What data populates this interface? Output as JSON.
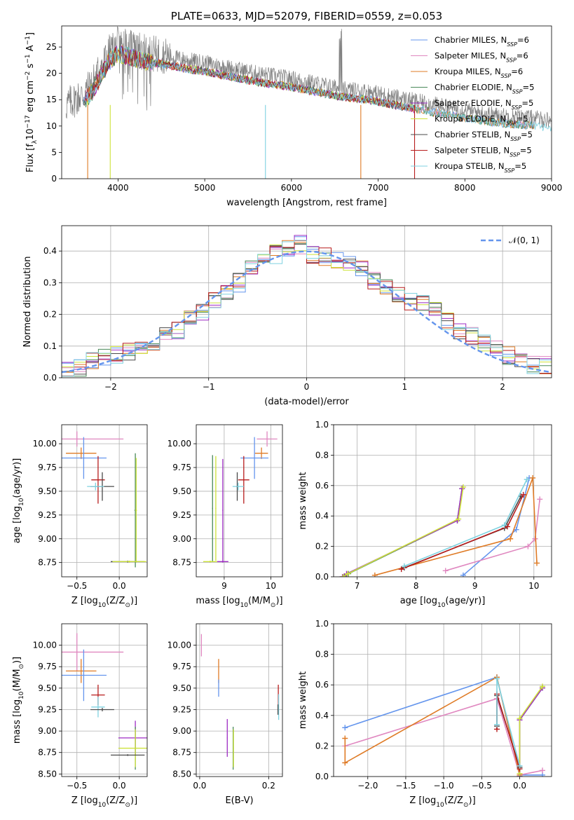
{
  "colors": {
    "chab_miles": "#6495ed",
    "salp_miles": "#e088c0",
    "krou_miles": "#df7b26",
    "chab_elod": "#4a8a5a",
    "salp_elod": "#9e2cc4",
    "krou_elod": "#cde23b",
    "chab_stel": "#4a4a4a",
    "salp_stel": "#b71c1c",
    "krou_stel": "#7fd2e0",
    "normal": "#6495ed"
  },
  "chart_data": [
    {
      "type": "line",
      "title": "PLATE=0633, MJD=52079, FIBERID=0559, z=0.053",
      "xlabel": "wavelength [Angstrom, rest frame]",
      "ylabel_parts": [
        "Flux [f",
        "λ",
        "10",
        "−17",
        " erg cm",
        "−2",
        " s",
        "−1",
        " A",
        "−1",
        "]"
      ],
      "xlim": [
        3350,
        9000
      ],
      "ylim": [
        0,
        29
      ],
      "xticks": [
        "4000",
        "5000",
        "6000",
        "7000",
        "8000",
        "9000"
      ],
      "yticks": [
        "0",
        "5",
        "10",
        "15",
        "20",
        "25"
      ],
      "legend": [
        {
          "key": "chab_miles",
          "label": "Chabrier MILES, N",
          "sub": "SSP",
          "tail": "=6"
        },
        {
          "key": "salp_miles",
          "label": "Salpeter MILES, N",
          "sub": "SSP",
          "tail": "=6"
        },
        {
          "key": "krou_miles",
          "label": "Kroupa MILES, N",
          "sub": "SSP",
          "tail": "=6"
        },
        {
          "key": "chab_elod",
          "label": "Chabrier ELODIE, N",
          "sub": "SSP",
          "tail": "=5"
        },
        {
          "key": "salp_elod",
          "label": "Salpeter ELODIE, N",
          "sub": "SSP",
          "tail": "=5"
        },
        {
          "key": "krou_elod",
          "label": "Kroupa ELODIE, N",
          "sub": "SSP",
          "tail": "=5"
        },
        {
          "key": "chab_stel",
          "label": "Chabrier STELIB, N",
          "sub": "SSP",
          "tail": "=5"
        },
        {
          "key": "salp_stel",
          "label": "Salpeter STELIB, N",
          "sub": "SSP",
          "tail": "=5"
        },
        {
          "key": "krou_stel",
          "label": "Kroupa STELIB, N",
          "sub": "SSP",
          "tail": "=5"
        }
      ],
      "spectrum": {
        "x": [
          3400,
          3600,
          3700,
          3800,
          3900,
          4000,
          4100,
          4300,
          4500,
          4800,
          5000,
          5300,
          5600,
          6000,
          6300,
          6600,
          6900,
          7200,
          7500,
          8000,
          8400,
          8800,
          9000
        ],
        "y": [
          14,
          16,
          18,
          21,
          24,
          25.5,
          25,
          24,
          23.5,
          22.5,
          22,
          21,
          20,
          19,
          18,
          17,
          16.5,
          15.5,
          14.5,
          13,
          12,
          11.5,
          11
        ]
      }
    },
    {
      "type": "histogram",
      "xlabel": "(data-model)/error",
      "ylabel": "Normed distribution",
      "xlim": [
        -2.5,
        2.5
      ],
      "ylim": [
        0,
        0.48
      ],
      "xticks": [
        "−2",
        "−1",
        "0",
        "1",
        "2"
      ],
      "yticks": [
        "0.0",
        "0.1",
        "0.2",
        "0.3",
        "0.4"
      ],
      "legend": "𝒩(0, 1)",
      "bin_edges": [
        -2.5,
        -2.375,
        -2.25,
        -2.125,
        -2.0,
        -1.875,
        -1.75,
        -1.625,
        -1.5,
        -1.375,
        -1.25,
        -1.125,
        -1.0,
        -0.875,
        -0.75,
        -0.625,
        -0.5,
        -0.375,
        -0.25,
        -0.125,
        0.0,
        0.125,
        0.25,
        0.375,
        0.5,
        0.625,
        0.75,
        0.875,
        1.0,
        1.125,
        1.25,
        1.375,
        1.5,
        1.625,
        1.75,
        1.875,
        2.0,
        2.125,
        2.25,
        2.375,
        2.5
      ],
      "hist_base": [
        0.02,
        0.03,
        0.05,
        0.06,
        0.07,
        0.08,
        0.1,
        0.11,
        0.13,
        0.15,
        0.19,
        0.21,
        0.25,
        0.27,
        0.3,
        0.34,
        0.36,
        0.39,
        0.41,
        0.42,
        0.39,
        0.38,
        0.37,
        0.36,
        0.34,
        0.31,
        0.29,
        0.26,
        0.24,
        0.23,
        0.21,
        0.18,
        0.15,
        0.13,
        0.11,
        0.09,
        0.07,
        0.05,
        0.04,
        0.04
      ]
    },
    {
      "type": "scatter",
      "panel": "age-vs-Z",
      "xlabel_parts": [
        "Z [log",
        "10",
        "(Z/Z",
        "⊙",
        ")]"
      ],
      "ylabel_parts": [
        "age  [log",
        "10",
        "(age/yr)]"
      ],
      "xlim": [
        -0.68,
        0.33
      ],
      "ylim": [
        8.6,
        10.2
      ],
      "xticks": [
        "−0.5",
        "0.0"
      ],
      "yticks": [
        "8.75",
        "9.00",
        "9.25",
        "9.50",
        "9.75",
        "10.00"
      ],
      "points": [
        {
          "key": "salp_miles",
          "x": -0.5,
          "y": 10.05,
          "ex": 0.55,
          "ey": 0.08
        },
        {
          "key": "krou_miles",
          "x": -0.45,
          "y": 9.9,
          "ex": 0.18,
          "ey": 0.06
        },
        {
          "key": "chab_miles",
          "x": -0.42,
          "y": 9.85,
          "ex": 0.27,
          "ey": 0.22
        },
        {
          "key": "salp_stel",
          "x": -0.25,
          "y": 9.62,
          "ex": 0.08,
          "ey": 0.25
        },
        {
          "key": "chab_stel",
          "x": -0.2,
          "y": 9.55,
          "ex": 0.14,
          "ey": 0.15
        },
        {
          "key": "krou_stel",
          "x": -0.28,
          "y": 9.55,
          "ex": 0.1,
          "ey": 0.04
        },
        {
          "key": "chab_elod",
          "x": 0.19,
          "y": 9.3,
          "ex": 0.01,
          "ey": 0.6
        },
        {
          "key": "krou_elod",
          "x": 0.2,
          "y": 9.3,
          "ex": 0.01,
          "ey": 0.55
        },
        {
          "key": "chab_stel",
          "x": 0.1,
          "y": 8.76,
          "ex": 0.2,
          "ey": 0.01
        },
        {
          "key": "krou_elod",
          "x": 0.12,
          "y": 8.76,
          "ex": 0.2,
          "ey": 0.01
        }
      ]
    },
    {
      "type": "scatter",
      "panel": "age-vs-mass",
      "xlabel_parts": [
        "mass [log",
        "10",
        "(M/M",
        "⊙",
        ")]"
      ],
      "xlim": [
        8.4,
        10.25
      ],
      "ylim": [
        8.6,
        10.2
      ],
      "xticks": [
        "9",
        "10"
      ],
      "yticks": [
        "8.75",
        "9.00",
        "9.25",
        "9.50",
        "9.75",
        "10.00"
      ],
      "points": [
        {
          "key": "salp_miles",
          "x": 9.92,
          "y": 10.05,
          "ex": 0.22,
          "ey": 0.08
        },
        {
          "key": "krou_miles",
          "x": 9.8,
          "y": 9.9,
          "ex": 0.14,
          "ey": 0.06
        },
        {
          "key": "chab_miles",
          "x": 9.65,
          "y": 9.85,
          "ex": 0.3,
          "ey": 0.22
        },
        {
          "key": "salp_stel",
          "x": 9.42,
          "y": 9.62,
          "ex": 0.12,
          "ey": 0.25
        },
        {
          "key": "chab_stel",
          "x": 9.28,
          "y": 9.55,
          "ex": 0.02,
          "ey": 0.15
        },
        {
          "key": "krou_stel",
          "x": 9.3,
          "y": 9.55,
          "ex": 0.12,
          "ey": 0.04
        },
        {
          "key": "chab_elod",
          "x": 8.75,
          "y": 9.32,
          "ex": 0.01,
          "ey": 0.56
        },
        {
          "key": "krou_elod",
          "x": 8.82,
          "y": 9.32,
          "ex": 0.01,
          "ey": 0.55
        },
        {
          "key": "salp_elod",
          "x": 8.97,
          "y": 9.3,
          "ex": 0.01,
          "ey": 0.54
        },
        {
          "key": "krou_elod",
          "x": 8.7,
          "y": 8.76,
          "ex": 0.15,
          "ey": 0.01
        },
        {
          "key": "salp_elod",
          "x": 8.97,
          "y": 8.76,
          "ex": 0.12,
          "ey": 0.01
        }
      ]
    },
    {
      "type": "line",
      "panel": "weight-vs-age",
      "xlabel_parts": [
        "age  [log",
        "10",
        "(age/yr)]"
      ],
      "ylabel": "mass weight",
      "xlim": [
        6.6,
        10.3
      ],
      "ylim": [
        0,
        1
      ],
      "xticks": [
        "7",
        "8",
        "9",
        "10"
      ],
      "yticks": [
        "0.0",
        "0.2",
        "0.4",
        "0.6",
        "0.8",
        "1.0"
      ],
      "series": [
        {
          "key": "chab_miles",
          "points": [
            [
              8.8,
              0.01
            ],
            [
              9.7,
              0.31
            ],
            [
              9.92,
              0.65
            ]
          ]
        },
        {
          "key": "salp_miles",
          "points": [
            [
              8.5,
              0.04
            ],
            [
              9.9,
              0.2
            ],
            [
              10.02,
              0.25
            ],
            [
              10.1,
              0.51
            ]
          ]
        },
        {
          "key": "krou_miles",
          "points": [
            [
              7.3,
              0.01
            ],
            [
              9.6,
              0.25
            ],
            [
              9.98,
              0.65
            ],
            [
              10.05,
              0.09
            ]
          ]
        },
        {
          "key": "chab_elod",
          "points": [
            [
              6.78,
              0.0
            ],
            [
              6.85,
              0.02
            ],
            [
              8.7,
              0.37
            ],
            [
              8.78,
              0.58
            ]
          ]
        },
        {
          "key": "salp_elod",
          "points": [
            [
              6.75,
              0.0
            ],
            [
              6.82,
              0.02
            ],
            [
              8.7,
              0.37
            ],
            [
              8.78,
              0.58
            ]
          ]
        },
        {
          "key": "krou_elod",
          "points": [
            [
              6.76,
              0.0
            ],
            [
              6.84,
              0.02
            ],
            [
              8.72,
              0.38
            ],
            [
              8.8,
              0.59
            ]
          ]
        },
        {
          "key": "chab_stel",
          "points": [
            [
              7.8,
              0.06
            ],
            [
              9.5,
              0.32
            ],
            [
              9.78,
              0.53
            ]
          ]
        },
        {
          "key": "salp_stel",
          "points": [
            [
              7.75,
              0.05
            ],
            [
              9.55,
              0.33
            ],
            [
              9.82,
              0.54
            ]
          ]
        },
        {
          "key": "krou_stel",
          "points": [
            [
              7.8,
              0.07
            ],
            [
              9.5,
              0.34
            ],
            [
              9.88,
              0.64
            ]
          ]
        }
      ]
    },
    {
      "type": "scatter",
      "panel": "mass-vs-Z",
      "xlabel_parts": [
        "Z [log",
        "10",
        "(Z/Z",
        "⊙",
        ")]"
      ],
      "ylabel_parts": [
        "mass [log",
        "10",
        "(M/M",
        "⊙",
        ")]"
      ],
      "xlim": [
        -0.68,
        0.33
      ],
      "ylim": [
        8.47,
        10.25
      ],
      "xticks": [
        "−0.5",
        "0.0"
      ],
      "yticks": [
        "8.50",
        "8.75",
        "9.00",
        "9.25",
        "9.50",
        "9.75",
        "10.00"
      ],
      "points": [
        {
          "key": "salp_miles",
          "x": -0.5,
          "y": 9.92,
          "ex": 0.55,
          "ey": 0.22
        },
        {
          "key": "krou_miles",
          "x": -0.45,
          "y": 9.7,
          "ex": 0.18,
          "ey": 0.14
        },
        {
          "key": "chab_miles",
          "x": -0.42,
          "y": 9.65,
          "ex": 0.27,
          "ey": 0.3
        },
        {
          "key": "salp_stel",
          "x": -0.25,
          "y": 9.42,
          "ex": 0.08,
          "ey": 0.12
        },
        {
          "key": "krou_stel",
          "x": -0.25,
          "y": 9.28,
          "ex": 0.08,
          "ey": 0.12
        },
        {
          "key": "chab_stel",
          "x": -0.2,
          "y": 9.25,
          "ex": 0.14,
          "ey": 0.02
        },
        {
          "key": "salp_elod",
          "x": 0.19,
          "y": 8.92,
          "ex": 0.2,
          "ey": 0.2
        },
        {
          "key": "chab_elod",
          "x": 0.19,
          "y": 8.8,
          "ex": 0.01,
          "ey": 0.25
        },
        {
          "key": "krou_elod",
          "x": 0.19,
          "y": 8.8,
          "ex": 0.2,
          "ey": 0.22
        },
        {
          "key": "chab_stel",
          "x": 0.1,
          "y": 8.72,
          "ex": 0.2,
          "ey": 0.01
        }
      ]
    },
    {
      "type": "scatter",
      "panel": "mass-vs-ebv",
      "xlabel": "E(B-V)",
      "xlim": [
        -0.01,
        0.24
      ],
      "ylim": [
        8.47,
        10.25
      ],
      "xticks": [
        "0.0",
        "0.2"
      ],
      "yticks": [
        "8.50",
        "8.75",
        "9.00",
        "9.25",
        "9.50",
        "9.75",
        "10.00"
      ],
      "points": [
        {
          "key": "salp_miles",
          "x": 0.005,
          "y": 10.0,
          "ex": 0.001,
          "ey": 0.13
        },
        {
          "key": "krou_miles",
          "x": 0.055,
          "y": 9.7,
          "ex": 0.001,
          "ey": 0.14
        },
        {
          "key": "chab_miles",
          "x": 0.055,
          "y": 9.5,
          "ex": 0.001,
          "ey": 0.1
        },
        {
          "key": "salp_stel",
          "x": 0.228,
          "y": 9.42,
          "ex": 0.001,
          "ey": 0.12
        },
        {
          "key": "krou_stel",
          "x": 0.229,
          "y": 9.28,
          "ex": 0.001,
          "ey": 0.15
        },
        {
          "key": "chab_stel",
          "x": 0.227,
          "y": 9.25,
          "ex": 0.001,
          "ey": 0.06
        },
        {
          "key": "salp_elod",
          "x": 0.08,
          "y": 8.92,
          "ex": 0.001,
          "ey": 0.22
        },
        {
          "key": "chab_elod",
          "x": 0.097,
          "y": 8.8,
          "ex": 0.001,
          "ey": 0.25
        },
        {
          "key": "krou_elod",
          "x": 0.098,
          "y": 8.8,
          "ex": 0.001,
          "ey": 0.22
        }
      ]
    },
    {
      "type": "line",
      "panel": "weight-vs-Z",
      "xlabel_parts": [
        "Z [log",
        "10",
        "(Z/Z",
        "⊙",
        ")]"
      ],
      "ylabel": "mass weight",
      "xlim": [
        -2.45,
        0.42
      ],
      "ylim": [
        0,
        1
      ],
      "xticks": [
        "−2.0",
        "−1.5",
        "−1.0",
        "−0.5",
        "0.0"
      ],
      "yticks": [
        "0.0",
        "0.2",
        "0.4",
        "0.6",
        "0.8",
        "1.0"
      ],
      "series": [
        {
          "key": "chab_miles",
          "points": [
            [
              -2.3,
              0.32
            ],
            [
              -0.3,
              0.65
            ],
            [
              0.0,
              0.01
            ],
            [
              0.3,
              0.01
            ]
          ]
        },
        {
          "key": "salp_miles",
          "points": [
            [
              -2.3,
              0.2
            ],
            [
              -0.3,
              0.51
            ],
            [
              0.0,
              0.01
            ],
            [
              0.3,
              0.04
            ]
          ]
        },
        {
          "key": "krou_miles",
          "points": [
            [
              -2.3,
              0.25
            ],
            [
              -2.3,
              0.09
            ],
            [
              -0.3,
              0.65
            ],
            [
              0.0,
              0.01
            ]
          ]
        },
        {
          "key": "chab_elod",
          "points": [
            [
              0.0,
              0.0
            ],
            [
              0.0,
              0.37
            ],
            [
              0.3,
              0.58
            ]
          ]
        },
        {
          "key": "salp_elod",
          "points": [
            [
              0.0,
              0.0
            ],
            [
              0.0,
              0.37
            ],
            [
              0.3,
              0.58
            ]
          ]
        },
        {
          "key": "krou_elod",
          "points": [
            [
              0.0,
              0.02
            ],
            [
              0.0,
              0.38
            ],
            [
              0.3,
              0.59
            ]
          ]
        },
        {
          "key": "chab_stel",
          "points": [
            [
              -0.3,
              0.33
            ],
            [
              -0.3,
              0.53
            ],
            [
              0.0,
              0.06
            ]
          ]
        },
        {
          "key": "salp_stel",
          "points": [
            [
              -0.3,
              0.31
            ],
            [
              -0.3,
              0.54
            ],
            [
              0.0,
              0.05
            ]
          ]
        },
        {
          "key": "krou_stel",
          "points": [
            [
              -0.3,
              0.34
            ],
            [
              -0.3,
              0.64
            ],
            [
              0.0,
              0.07
            ]
          ]
        }
      ]
    }
  ]
}
